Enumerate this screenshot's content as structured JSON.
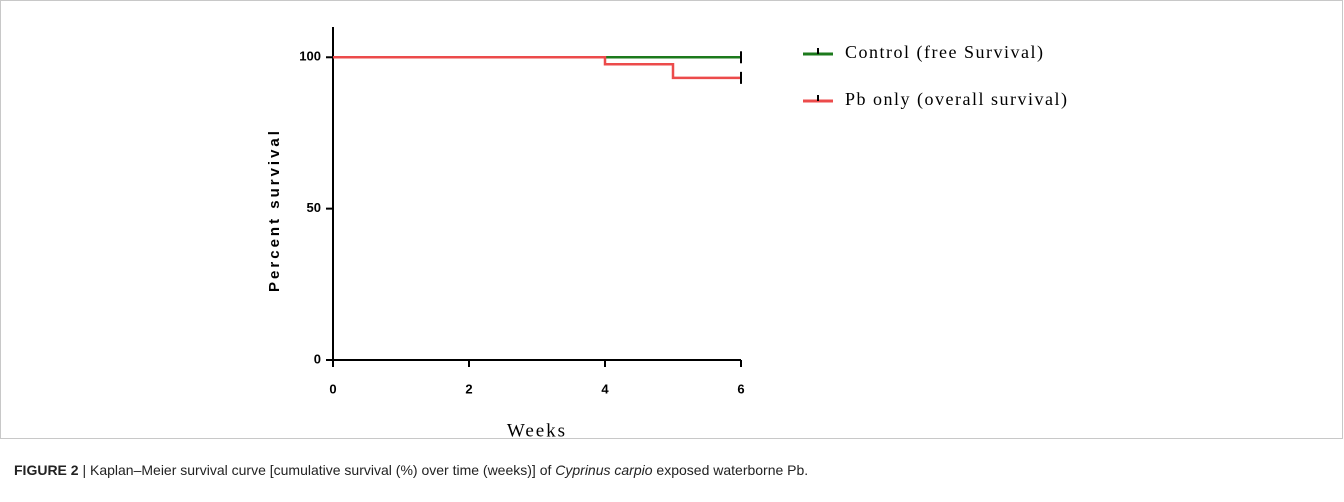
{
  "chart_data": {
    "type": "step",
    "step": "post",
    "xlabel": "Weeks",
    "ylabel": "Percent survival",
    "xlim": [
      0,
      6
    ],
    "xticks": [
      0,
      2,
      4,
      6
    ],
    "ylim": [
      0,
      110
    ],
    "yticks": [
      0,
      50,
      100
    ],
    "grid": false,
    "legend": "upper right",
    "series": [
      {
        "name": "Control (free Survival)",
        "color": "#1c7a1c",
        "x": [
          0,
          6
        ],
        "values": [
          100,
          100
        ]
      },
      {
        "name": "Pb only (overall survival)",
        "color": "#ec4b4b",
        "x": [
          0,
          4,
          5,
          6
        ],
        "values": [
          100,
          97.7,
          93.2,
          93.2
        ]
      }
    ]
  },
  "caption": {
    "label": "FIGURE 2",
    "text": "| Kaplan–Meier survival curve [cumulative survival (%) over time (weeks)] of",
    "species": "Cyprinus carpio",
    "text2": "exposed waterborne Pb."
  }
}
